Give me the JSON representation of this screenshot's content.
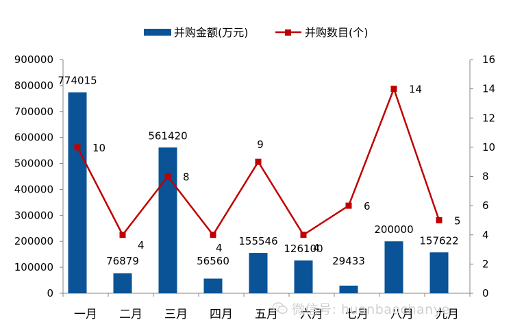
{
  "chart_data": {
    "type": "bar+line",
    "categories": [
      "一月",
      "二月",
      "三月",
      "四月",
      "五月",
      "六月",
      "七月",
      "八月",
      "九月"
    ],
    "series": [
      {
        "name": "并购金额(万元)",
        "type": "bar",
        "axis": "left",
        "color": "#0a5396",
        "values": [
          774015,
          76879,
          561420,
          56560,
          155546,
          126100,
          29433,
          200000,
          157622
        ],
        "labels": [
          "774015",
          "76879",
          "561420",
          "56560",
          "155546",
          "126100",
          "29433",
          "200000",
          "157622"
        ]
      },
      {
        "name": "并购数目(个)",
        "type": "line",
        "axis": "right",
        "color": "#c00000",
        "values": [
          10,
          4,
          8,
          4,
          9,
          4,
          6,
          14,
          5
        ],
        "labels": [
          "10",
          "4",
          "8",
          "4",
          "9",
          "4",
          "6",
          "14",
          "5"
        ]
      }
    ],
    "y_left": {
      "ylim": [
        0,
        900000
      ],
      "ticks": [
        "0",
        "100000",
        "200000",
        "300000",
        "400000",
        "500000",
        "600000",
        "700000",
        "800000",
        "900000"
      ]
    },
    "y_right": {
      "ylim": [
        0,
        16
      ],
      "ticks": [
        "0",
        "2",
        "4",
        "6",
        "8",
        "10",
        "12",
        "14",
        "16"
      ]
    },
    "grid": false,
    "legend": "top-center"
  },
  "watermark": {
    "text": "微信号: huanbaochanye",
    "icon": "wechat-icon"
  }
}
